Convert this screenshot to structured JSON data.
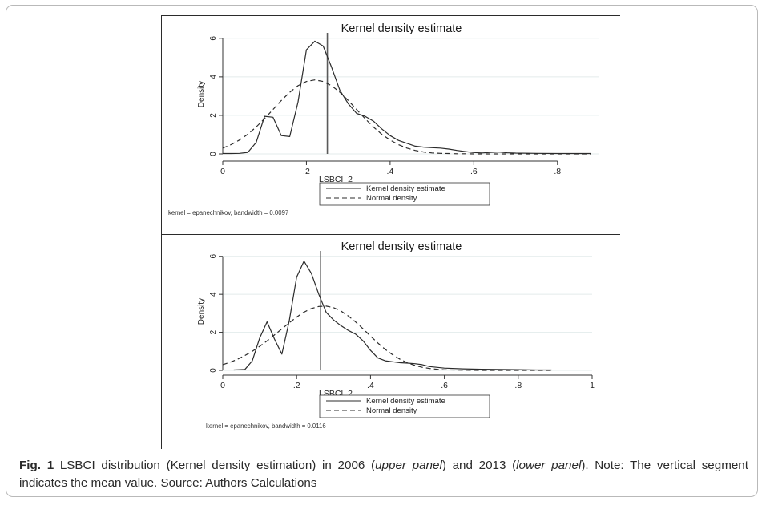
{
  "caption": {
    "label": "Fig. 1",
    "text_1": " LSBCI distribution (Kernel density estimation) in 2006 (",
    "upper_panel": "upper panel",
    "text_2": ") and 2013 (",
    "lower_panel": "lower panel",
    "text_3": "). Note: The vertical segment indicates the mean value. Source: Authors Calculations"
  },
  "chart_data": [
    {
      "type": "line",
      "title": "Kernel density estimate",
      "xlabel": "LSBCI_2",
      "ylabel": "Density",
      "xlim": [
        0,
        0.9
      ],
      "ylim": [
        0,
        6.2
      ],
      "x_ticks": [
        0,
        0.2,
        0.4,
        0.6,
        0.8
      ],
      "x_tick_labels": [
        "0",
        ".2",
        ".4",
        ".6",
        ".8"
      ],
      "y_ticks": [
        0,
        2,
        4,
        6
      ],
      "y_tick_labels": [
        "0",
        "2",
        "4",
        "6"
      ],
      "grid": "horizontal",
      "mean_line_x": 0.25,
      "legend": [
        "Kernel density estimate",
        "Normal density"
      ],
      "note": "kernel = epanechnikov, bandwidth = 0.0097",
      "series": [
        {
          "name": "Kernel density estimate",
          "style": "solid",
          "x": [
            0,
            0.02,
            0.04,
            0.06,
            0.08,
            0.1,
            0.12,
            0.14,
            0.16,
            0.18,
            0.2,
            0.22,
            0.24,
            0.26,
            0.28,
            0.3,
            0.32,
            0.34,
            0.36,
            0.38,
            0.4,
            0.42,
            0.44,
            0.46,
            0.48,
            0.5,
            0.52,
            0.54,
            0.56,
            0.58,
            0.6,
            0.62,
            0.64,
            0.66,
            0.68,
            0.7,
            0.75,
            0.8,
            0.85,
            0.88
          ],
          "y": [
            0.02,
            0.02,
            0.03,
            0.08,
            0.6,
            1.95,
            1.9,
            0.95,
            0.9,
            2.7,
            5.4,
            5.85,
            5.6,
            4.5,
            3.3,
            2.6,
            2.1,
            1.95,
            1.7,
            1.3,
            0.95,
            0.7,
            0.55,
            0.4,
            0.35,
            0.32,
            0.3,
            0.25,
            0.18,
            0.12,
            0.07,
            0.05,
            0.08,
            0.1,
            0.06,
            0.04,
            0.03,
            0.02,
            0.02,
            0.02
          ]
        },
        {
          "name": "Normal density",
          "style": "dashed",
          "x": [
            0,
            0.02,
            0.04,
            0.06,
            0.08,
            0.1,
            0.12,
            0.14,
            0.16,
            0.18,
            0.2,
            0.22,
            0.24,
            0.26,
            0.28,
            0.3,
            0.32,
            0.34,
            0.36,
            0.38,
            0.4,
            0.42,
            0.44,
            0.46,
            0.48,
            0.5,
            0.52,
            0.54,
            0.56,
            0.58,
            0.6,
            0.62,
            0.64,
            0.66,
            0.68,
            0.7,
            0.75,
            0.8,
            0.85,
            0.88
          ],
          "y": [
            0.3,
            0.48,
            0.72,
            1.02,
            1.4,
            1.83,
            2.3,
            2.77,
            3.2,
            3.54,
            3.76,
            3.84,
            3.76,
            3.54,
            3.2,
            2.77,
            2.3,
            1.83,
            1.4,
            1.02,
            0.72,
            0.48,
            0.3,
            0.18,
            0.1,
            0.05,
            0.03,
            0.02,
            0.01,
            0.01,
            0,
            0,
            0,
            0,
            0,
            0,
            0,
            0,
            0,
            0
          ]
        }
      ]
    },
    {
      "type": "line",
      "title": "Kernel density estimate",
      "xlabel": "LSBCI_2",
      "ylabel": "Density",
      "xlim": [
        0,
        1
      ],
      "ylim": [
        0,
        6.2
      ],
      "x_ticks": [
        0,
        0.2,
        0.4,
        0.6,
        0.8,
        1
      ],
      "x_tick_labels": [
        "0",
        ".2",
        ".4",
        ".6",
        ".8",
        "1"
      ],
      "y_ticks": [
        0,
        2,
        4,
        6
      ],
      "y_tick_labels": [
        "0",
        "2",
        "4",
        "6"
      ],
      "grid": "horizontal",
      "mean_line_x": 0.265,
      "legend": [
        "Kernel density estimate",
        "Normal density"
      ],
      "note": "kernel = epanechnikov, bandwidth = 0.0116",
      "series": [
        {
          "name": "Kernel density estimate",
          "style": "solid",
          "x": [
            0.03,
            0.06,
            0.08,
            0.1,
            0.12,
            0.14,
            0.16,
            0.18,
            0.2,
            0.22,
            0.24,
            0.26,
            0.28,
            0.3,
            0.32,
            0.34,
            0.36,
            0.38,
            0.4,
            0.42,
            0.44,
            0.46,
            0.48,
            0.5,
            0.52,
            0.54,
            0.56,
            0.6,
            0.65,
            0.7,
            0.75,
            0.8,
            0.85,
            0.89
          ],
          "y": [
            0.02,
            0.05,
            0.5,
            1.7,
            2.55,
            1.65,
            0.85,
            2.6,
            4.9,
            5.75,
            5.1,
            4.0,
            3.05,
            2.65,
            2.35,
            2.1,
            1.9,
            1.55,
            1.05,
            0.65,
            0.5,
            0.45,
            0.4,
            0.38,
            0.35,
            0.3,
            0.2,
            0.12,
            0.08,
            0.06,
            0.05,
            0.04,
            0.02,
            0.02
          ]
        },
        {
          "name": "Normal density",
          "style": "dashed",
          "x": [
            0,
            0.02,
            0.04,
            0.06,
            0.08,
            0.1,
            0.12,
            0.14,
            0.16,
            0.18,
            0.2,
            0.22,
            0.24,
            0.26,
            0.28,
            0.3,
            0.32,
            0.34,
            0.36,
            0.38,
            0.4,
            0.42,
            0.44,
            0.46,
            0.48,
            0.5,
            0.52,
            0.54,
            0.56,
            0.58,
            0.6,
            0.65,
            0.7,
            0.75,
            0.8,
            0.85,
            0.89
          ],
          "y": [
            0.3,
            0.42,
            0.58,
            0.78,
            1.0,
            1.26,
            1.55,
            1.86,
            2.18,
            2.5,
            2.8,
            3.06,
            3.25,
            3.36,
            3.38,
            3.3,
            3.12,
            2.86,
            2.54,
            2.18,
            1.8,
            1.44,
            1.1,
            0.82,
            0.58,
            0.4,
            0.26,
            0.16,
            0.1,
            0.06,
            0.03,
            0.01,
            0,
            0,
            0,
            0,
            0
          ]
        }
      ]
    }
  ]
}
